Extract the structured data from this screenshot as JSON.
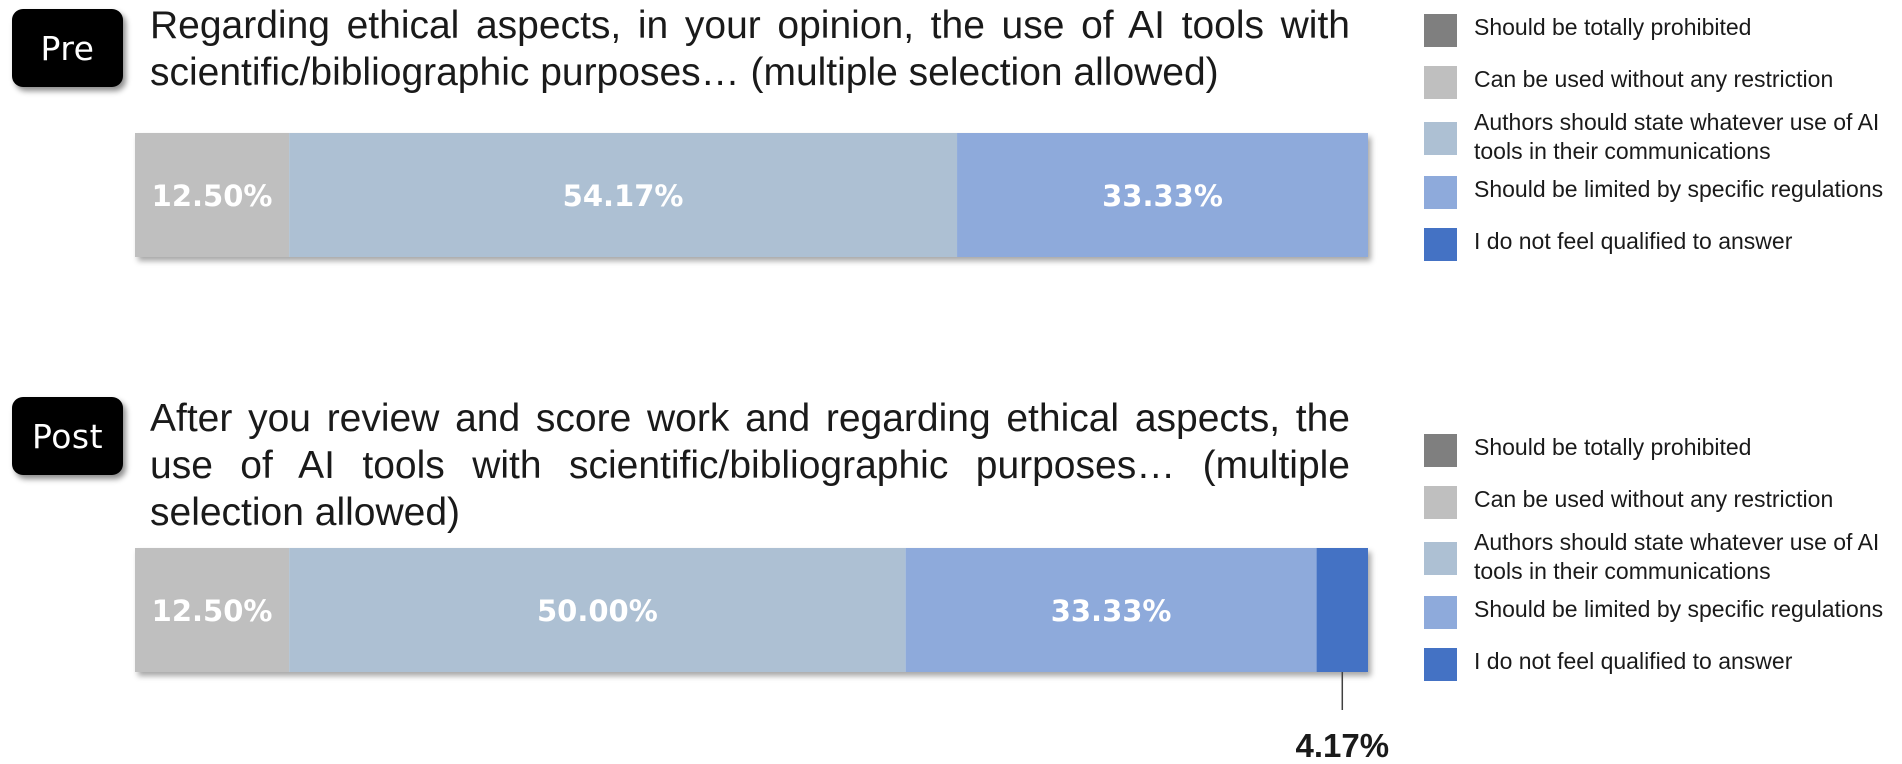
{
  "legend_entries": [
    {
      "label": "Should be totally prohibited",
      "color": "#7f7f7f"
    },
    {
      "label": "Can be used without any restriction",
      "color": "#bfbfbf"
    },
    {
      "label": "Authors should state whatever use of AI tools in their communications",
      "color": "#adc0d3"
    },
    {
      "label": "Should be limited by specific regulations",
      "color": "#8eaadb"
    },
    {
      "label": "I do not feel qualified to answer",
      "color": "#4472c4"
    }
  ],
  "panels": {
    "pre": {
      "phase_label": "Pre",
      "question": "Regarding ethical aspects, in your opinion, the use of AI tools with scientific/bibliographic purposes… (multiple selection allowed)"
    },
    "post": {
      "phase_label": "Post",
      "question": "After you review and score work and regarding ethical aspects, the use of AI tools with scientific/bibliographic purposes… (multiple selection allowed)"
    }
  },
  "chart_data": [
    {
      "type": "bar",
      "orientation": "horizontal-stacked-100",
      "title": "Regarding ethical aspects, in your opinion, the use of AI tools with scientific/bibliographic purposes… (multiple selection allowed)",
      "categories": [
        "Pre"
      ],
      "xlim": [
        0,
        100
      ],
      "grid": false,
      "legend": "right",
      "series": [
        {
          "name": "Should be totally prohibited",
          "values": [
            0
          ],
          "label": ""
        },
        {
          "name": "Can be used without any restriction",
          "values": [
            12.5
          ],
          "label": "12.50%"
        },
        {
          "name": "Authors should state whatever use of AI tools in their communications",
          "values": [
            54.17
          ],
          "label": "54.17%"
        },
        {
          "name": "Should be limited by specific regulations",
          "values": [
            33.33
          ],
          "label": "33.33%"
        },
        {
          "name": "I do not feel qualified to answer",
          "values": [
            0
          ],
          "label": ""
        }
      ]
    },
    {
      "type": "bar",
      "orientation": "horizontal-stacked-100",
      "title": "After you review and score work and regarding ethical aspects, the use of AI tools with scientific/bibliographic purposes… (multiple selection allowed)",
      "categories": [
        "Post"
      ],
      "xlim": [
        0,
        100
      ],
      "grid": false,
      "legend": "right",
      "series": [
        {
          "name": "Should be totally prohibited",
          "values": [
            0
          ],
          "label": ""
        },
        {
          "name": "Can be used without any restriction",
          "values": [
            12.5
          ],
          "label": "12.50%"
        },
        {
          "name": "Authors should state whatever use of AI tools in their communications",
          "values": [
            50.0
          ],
          "label": "50.00%"
        },
        {
          "name": "Should be limited by specific regulations",
          "values": [
            33.33
          ],
          "label": "33.33%"
        },
        {
          "name": "I do not feel qualified to answer",
          "values": [
            4.17
          ],
          "label": "4.17%",
          "label_style": "callout-below"
        }
      ]
    }
  ]
}
